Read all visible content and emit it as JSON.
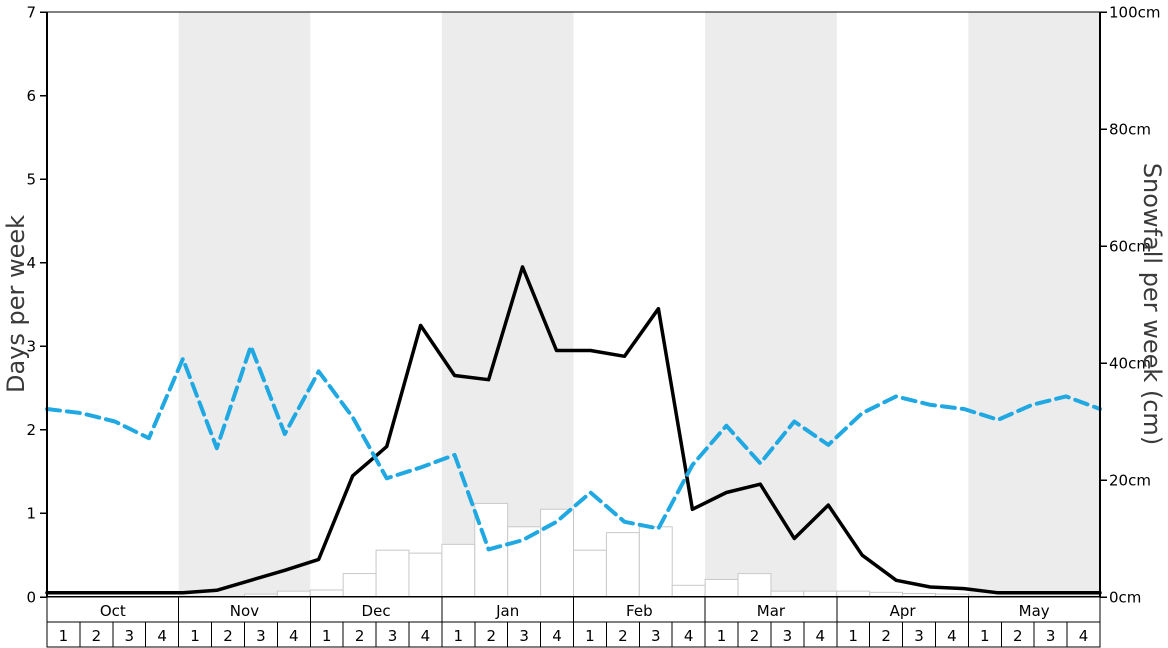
{
  "figure": {
    "background": "#ffffff"
  },
  "chart_data": {
    "type": "composite",
    "title": "",
    "left_axis": {
      "label": "Days per week",
      "min": 0,
      "max": 7,
      "ticks": [
        0,
        1,
        2,
        3,
        4,
        5,
        6,
        7
      ]
    },
    "right_axis": {
      "label": "Snowfall per week (cm)",
      "min": 0,
      "max": 100,
      "tick_values": [
        0,
        20,
        40,
        60,
        80,
        100
      ],
      "tick_labels": [
        "0cm",
        "20cm",
        "40cm",
        "60cm",
        "80cm",
        "100cm"
      ]
    },
    "months": [
      "Oct",
      "Nov",
      "Dec",
      "Jan",
      "Feb",
      "Mar",
      "Apr",
      "May"
    ],
    "weeks_per_month": [
      "1",
      "2",
      "3",
      "4"
    ],
    "shaded_months": [
      "Nov",
      "Jan",
      "Mar",
      "May"
    ],
    "grid": false,
    "legend": false,
    "colors": {
      "band": "#ececec",
      "black_line": "#000000",
      "blue_line": "#1fa8e2",
      "bar_fill": "#ffffff",
      "bar_stroke": "#c8c8c8",
      "axis": "#000000"
    },
    "series": [
      {
        "name": "days-per-week-solid-black-line",
        "type": "line",
        "axis": "left",
        "color": "#000000",
        "width": 3.5,
        "dash": null,
        "values": [
          0.05,
          0.05,
          0.05,
          0.05,
          0.05,
          0.08,
          0.2,
          0.32,
          0.45,
          1.45,
          1.8,
          3.25,
          2.65,
          2.6,
          3.95,
          2.95,
          2.95,
          2.88,
          3.45,
          1.05,
          1.25,
          1.35,
          0.7,
          1.1,
          0.5,
          0.2,
          0.12,
          0.1,
          0.05,
          0.05,
          0.05,
          0.05
        ]
      },
      {
        "name": "days-per-week-dashed-blue-line",
        "type": "line",
        "axis": "left",
        "color": "#1fa8e2",
        "width": 4,
        "dash": "13 7",
        "values": [
          2.25,
          2.2,
          2.1,
          1.9,
          2.85,
          1.78,
          3.0,
          1.95,
          2.7,
          2.15,
          1.42,
          1.55,
          1.7,
          0.57,
          0.68,
          0.9,
          1.25,
          0.9,
          0.82,
          1.58,
          2.05,
          1.6,
          2.1,
          1.82,
          2.2,
          2.4,
          2.3,
          2.25,
          2.12,
          2.3,
          2.4,
          2.25
        ]
      },
      {
        "name": "snowfall-per-week-bars",
        "type": "bar",
        "axis": "right",
        "fill": "#ffffff",
        "stroke": "#c8c8c8",
        "values": [
          0,
          0,
          0,
          0,
          0,
          0,
          0.5,
          1,
          1.2,
          4,
          8,
          7.5,
          9,
          16,
          12,
          15,
          8,
          11,
          12,
          2,
          3,
          4,
          1,
          1,
          1,
          0.8,
          0.6,
          0.5,
          0,
          0,
          0,
          0
        ]
      }
    ]
  }
}
